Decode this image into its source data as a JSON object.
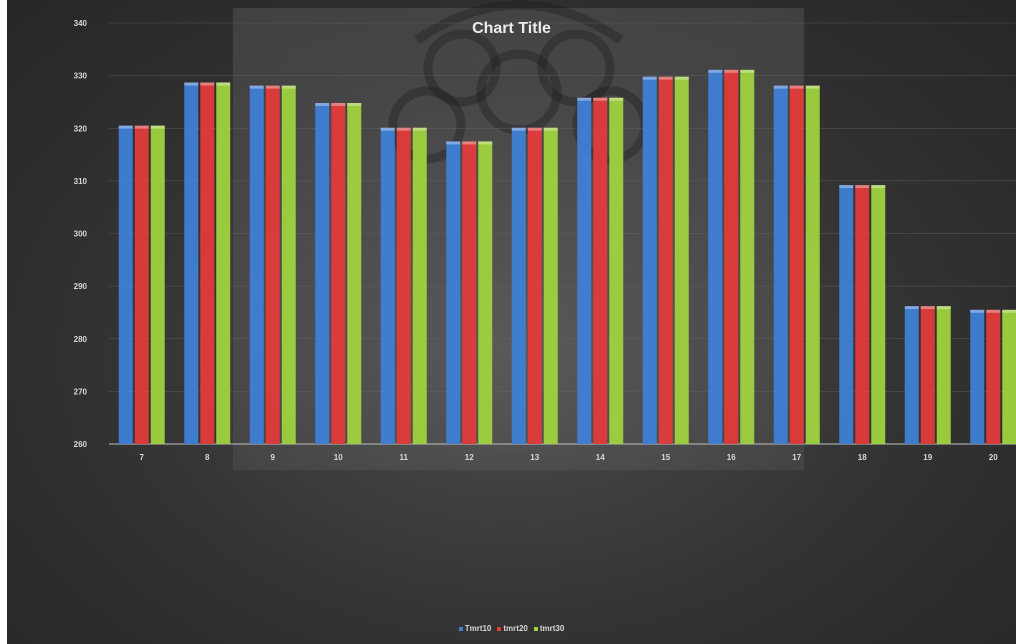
{
  "chart_data": {
    "type": "bar",
    "title": "Chart Title",
    "xlabel": "",
    "ylabel": "",
    "ylim": [
      260,
      340
    ],
    "yticks": [
      260,
      270,
      280,
      290,
      300,
      310,
      320,
      330,
      340
    ],
    "categories": [
      "7",
      "8",
      "9",
      "10",
      "11",
      "12",
      "13",
      "14",
      "15",
      "16",
      "17",
      "18",
      "19",
      "20"
    ],
    "series": [
      {
        "name": "Tmrt10",
        "color": "#3f7fd6",
        "values": [
          320.5,
          328.7,
          328.1,
          324.8,
          320.1,
          317.5,
          320.1,
          325.8,
          329.8,
          331.1,
          328.1,
          309.2,
          286.2,
          285.5
        ]
      },
      {
        "name": "tmrt20",
        "color": "#e23b3b",
        "values": [
          320.5,
          328.7,
          328.1,
          324.8,
          320.1,
          317.5,
          320.1,
          325.8,
          329.8,
          331.1,
          328.1,
          309.2,
          286.2,
          285.5
        ]
      },
      {
        "name": "tmrt30",
        "color": "#9fd23d",
        "values": [
          320.5,
          328.7,
          328.1,
          324.8,
          320.1,
          317.5,
          320.1,
          325.8,
          329.8,
          331.1,
          328.1,
          309.2,
          286.2,
          285.5
        ]
      }
    ],
    "grid": true,
    "legend_position": "bottom"
  }
}
